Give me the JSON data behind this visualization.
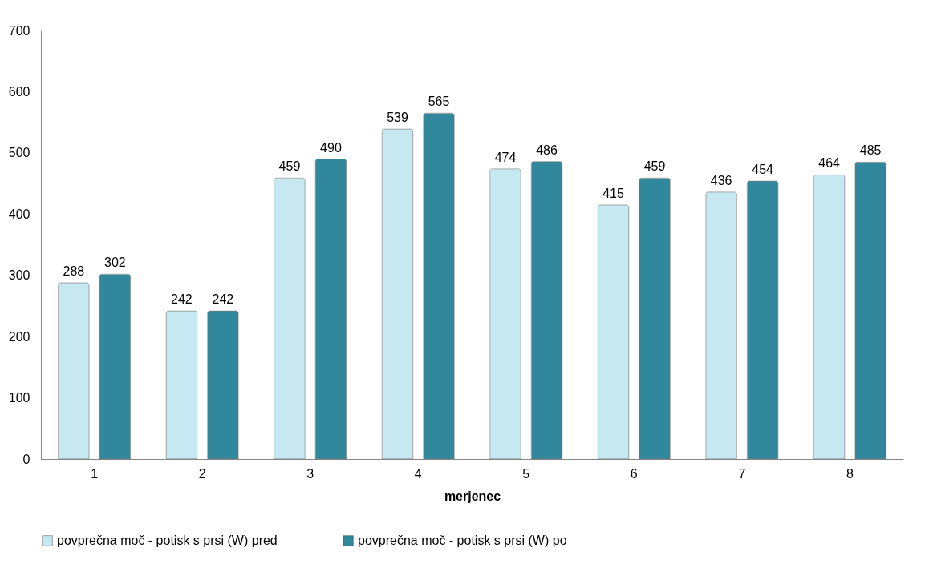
{
  "chart_data": {
    "type": "bar",
    "xlabel": "merjenec",
    "categories": [
      "1",
      "2",
      "3",
      "4",
      "5",
      "6",
      "7",
      "8"
    ],
    "series": [
      {
        "name": "povprečna moč - potisk s prsi (W) pred",
        "color": "#c6e9f1",
        "values": [
          288,
          242,
          459,
          539,
          474,
          415,
          436,
          464
        ]
      },
      {
        "name": "povprečna moč - potisk s prsi (W) po",
        "color": "#31879b",
        "values": [
          302,
          242,
          490,
          565,
          486,
          459,
          454,
          485
        ]
      }
    ],
    "ylim": [
      0,
      700
    ],
    "yticks": [
      0,
      100,
      200,
      300,
      400,
      500,
      600,
      700
    ],
    "grid": false,
    "legend": "bottom",
    "data_labels": true
  }
}
